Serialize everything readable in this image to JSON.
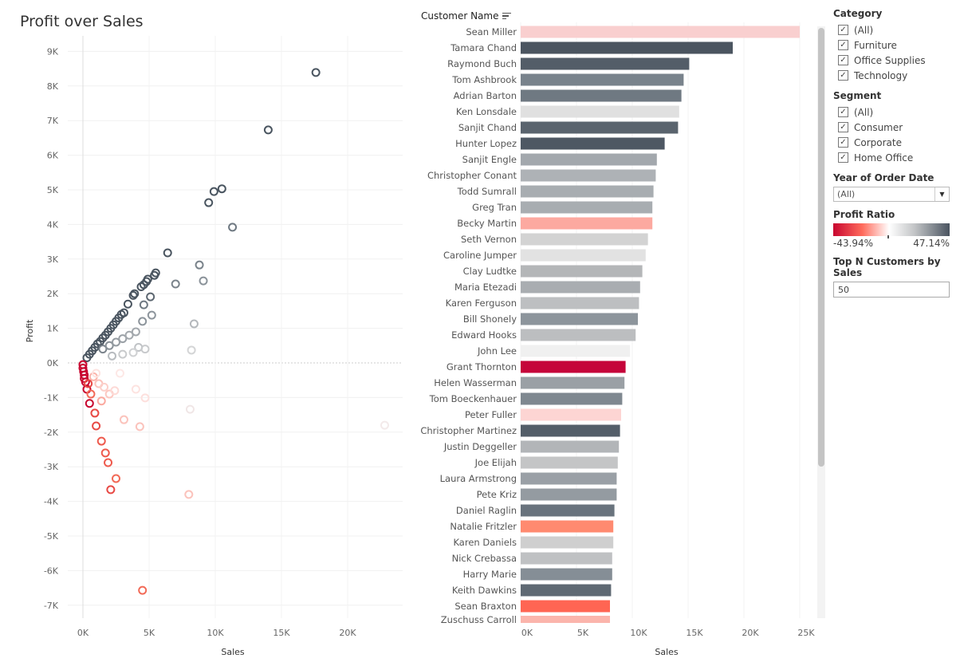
{
  "scatter": {
    "title": "Profit over Sales",
    "chart_data": {
      "type": "scatter",
      "xlabel": "Sales",
      "ylabel": "Profit",
      "xlim": [
        -1.2,
        24
      ],
      "ylim": [
        -7.4,
        9.3
      ],
      "xticks": [
        "0K",
        "5K",
        "10K",
        "15K",
        "20K"
      ],
      "xtick_values": [
        0,
        5,
        10,
        15,
        20
      ],
      "yticks": [
        "9K",
        "8K",
        "7K",
        "6K",
        "5K",
        "4K",
        "3K",
        "2K",
        "1K",
        "0K",
        "-1K",
        "-2K",
        "-3K",
        "-4K",
        "-5K",
        "-6K",
        "-7K"
      ],
      "ytick_values": [
        9,
        8,
        7,
        6,
        5,
        4,
        3,
        2,
        1,
        0,
        -1,
        -2,
        -3,
        -4,
        -5,
        -6,
        -7
      ],
      "units": "thousands",
      "grid": true,
      "points": [
        {
          "x": 0.3,
          "y": 0.15,
          "c": "#4a5560"
        },
        {
          "x": 0.5,
          "y": 0.25,
          "c": "#4a5560"
        },
        {
          "x": 0.7,
          "y": 0.35,
          "c": "#4a5560"
        },
        {
          "x": 0.9,
          "y": 0.45,
          "c": "#4a5560"
        },
        {
          "x": 1.1,
          "y": 0.55,
          "c": "#4a5560"
        },
        {
          "x": 1.3,
          "y": 0.62,
          "c": "#4a5560"
        },
        {
          "x": 1.5,
          "y": 0.72,
          "c": "#4a5560"
        },
        {
          "x": 1.7,
          "y": 0.8,
          "c": "#4a5560"
        },
        {
          "x": 1.9,
          "y": 0.9,
          "c": "#4a5560"
        },
        {
          "x": 2.1,
          "y": 1.0,
          "c": "#4a5560"
        },
        {
          "x": 2.3,
          "y": 1.1,
          "c": "#4a5560"
        },
        {
          "x": 2.5,
          "y": 1.2,
          "c": "#4a5560"
        },
        {
          "x": 2.7,
          "y": 1.3,
          "c": "#4a5560"
        },
        {
          "x": 2.9,
          "y": 1.4,
          "c": "#4a5560"
        },
        {
          "x": 3.1,
          "y": 1.45,
          "c": "#4a5560"
        },
        {
          "x": 3.4,
          "y": 1.7,
          "c": "#4a5560"
        },
        {
          "x": 3.8,
          "y": 1.95,
          "c": "#4a5560"
        },
        {
          "x": 3.9,
          "y": 2.0,
          "c": "#4a5560"
        },
        {
          "x": 4.4,
          "y": 2.2,
          "c": "#4a5560"
        },
        {
          "x": 4.8,
          "y": 2.35,
          "c": "#4a5560"
        },
        {
          "x": 4.9,
          "y": 2.42,
          "c": "#4a5560"
        },
        {
          "x": 5.4,
          "y": 2.53,
          "c": "#4a5560"
        },
        {
          "x": 5.5,
          "y": 2.6,
          "c": "#4a5560"
        },
        {
          "x": 6.4,
          "y": 3.18,
          "c": "#4a5560"
        },
        {
          "x": 1.5,
          "y": 0.4,
          "c": "#7a838b"
        },
        {
          "x": 2.0,
          "y": 0.5,
          "c": "#8a9299"
        },
        {
          "x": 2.5,
          "y": 0.6,
          "c": "#959ca2"
        },
        {
          "x": 3.0,
          "y": 0.7,
          "c": "#9aa0a6"
        },
        {
          "x": 3.5,
          "y": 0.8,
          "c": "#a3a8ad"
        },
        {
          "x": 4.0,
          "y": 0.9,
          "c": "#a3a8ad"
        },
        {
          "x": 4.5,
          "y": 1.2,
          "c": "#8d959c"
        },
        {
          "x": 4.6,
          "y": 1.68,
          "c": "#6f7982"
        },
        {
          "x": 5.2,
          "y": 1.38,
          "c": "#8d959c"
        },
        {
          "x": 4.2,
          "y": 0.45,
          "c": "#c0c3c6"
        },
        {
          "x": 4.7,
          "y": 0.4,
          "c": "#c8cacc"
        },
        {
          "x": 3.8,
          "y": 0.3,
          "c": "#cfd1d3"
        },
        {
          "x": 3.0,
          "y": 0.25,
          "c": "#c8cacc"
        },
        {
          "x": 2.2,
          "y": 0.2,
          "c": "#b8bcc0"
        },
        {
          "x": 5.1,
          "y": 1.91,
          "c": "#5c6670"
        },
        {
          "x": 4.6,
          "y": 2.26,
          "c": "#4a5560"
        },
        {
          "x": 7.0,
          "y": 2.28,
          "c": "#7a838b"
        },
        {
          "x": 8.8,
          "y": 2.83,
          "c": "#7a838b"
        },
        {
          "x": 9.1,
          "y": 2.37,
          "c": "#8a9299"
        },
        {
          "x": 8.4,
          "y": 1.13,
          "c": "#b4b8bc"
        },
        {
          "x": 8.2,
          "y": 0.37,
          "c": "#d4d5d6"
        },
        {
          "x": 9.5,
          "y": 4.63,
          "c": "#4a5560"
        },
        {
          "x": 9.9,
          "y": 4.95,
          "c": "#4a5560"
        },
        {
          "x": 10.5,
          "y": 5.03,
          "c": "#4a5560"
        },
        {
          "x": 11.3,
          "y": 3.92,
          "c": "#6f7982"
        },
        {
          "x": 14.0,
          "y": 6.73,
          "c": "#4a5560"
        },
        {
          "x": 17.6,
          "y": 8.39,
          "c": "#4a5560"
        },
        {
          "x": 0.0,
          "y": -0.05,
          "c": "#c8062f"
        },
        {
          "x": 0.0,
          "y": -0.15,
          "c": "#c8062f"
        },
        {
          "x": 0.05,
          "y": -0.25,
          "c": "#c8062f"
        },
        {
          "x": 0.1,
          "y": -0.35,
          "c": "#c8062f"
        },
        {
          "x": 0.1,
          "y": -0.45,
          "c": "#c8062f"
        },
        {
          "x": 0.2,
          "y": -0.55,
          "c": "#c8062f"
        },
        {
          "x": 0.3,
          "y": -0.76,
          "c": "#c8062f"
        },
        {
          "x": 0.5,
          "y": -1.17,
          "c": "#c8062f"
        },
        {
          "x": 0.9,
          "y": -1.45,
          "c": "#e84a45"
        },
        {
          "x": 1.0,
          "y": -1.82,
          "c": "#e84a45"
        },
        {
          "x": 1.4,
          "y": -2.26,
          "c": "#ee5a4d"
        },
        {
          "x": 1.7,
          "y": -2.6,
          "c": "#ee5a4d"
        },
        {
          "x": 1.9,
          "y": -2.88,
          "c": "#ee5a4d"
        },
        {
          "x": 2.5,
          "y": -3.34,
          "c": "#f26a57"
        },
        {
          "x": 2.1,
          "y": -3.66,
          "c": "#e84a45"
        },
        {
          "x": 4.5,
          "y": -6.57,
          "c": "#f26a57"
        },
        {
          "x": 0.8,
          "y": -0.4,
          "c": "#fbb5ac"
        },
        {
          "x": 1.2,
          "y": -0.6,
          "c": "#fbc3bc"
        },
        {
          "x": 1.6,
          "y": -0.7,
          "c": "#fcd0ca"
        },
        {
          "x": 2.0,
          "y": -0.9,
          "c": "#fcc8c1"
        },
        {
          "x": 1.4,
          "y": -1.1,
          "c": "#fba99f"
        },
        {
          "x": 2.4,
          "y": -0.8,
          "c": "#fddad6"
        },
        {
          "x": 3.1,
          "y": -1.64,
          "c": "#fbc3bc"
        },
        {
          "x": 4.3,
          "y": -1.84,
          "c": "#fbc3bc"
        },
        {
          "x": 4.7,
          "y": -1.01,
          "c": "#fde0dd"
        },
        {
          "x": 4.0,
          "y": -0.76,
          "c": "#fde3e0"
        },
        {
          "x": 2.8,
          "y": -0.3,
          "c": "#fde8e6"
        },
        {
          "x": 8.1,
          "y": -1.34,
          "c": "#f0e6e6"
        },
        {
          "x": 8.0,
          "y": -3.8,
          "c": "#fbc3bc"
        },
        {
          "x": 22.8,
          "y": -1.8,
          "c": "#f3eaea"
        },
        {
          "x": 0.6,
          "y": -0.9,
          "c": "#f26a57"
        },
        {
          "x": 0.4,
          "y": -0.6,
          "c": "#e84a45"
        },
        {
          "x": 1.0,
          "y": -0.3,
          "c": "#fde3e0"
        }
      ]
    }
  },
  "bars": {
    "header": "Customer Name",
    "chart_data": {
      "type": "bar",
      "orientation": "horizontal",
      "xlabel": "Sales",
      "xlim": [
        0,
        25
      ],
      "units": "thousands",
      "xticks": [
        "0K",
        "5K",
        "10K",
        "15K",
        "20K",
        "25K"
      ],
      "xtick_values": [
        0,
        5,
        10,
        15,
        20,
        25
      ],
      "categories": [
        "Sean Miller",
        "Tamara Chand",
        "Raymond Buch",
        "Tom Ashbrook",
        "Adrian Barton",
        "Ken Lonsdale",
        "Sanjit Chand",
        "Hunter Lopez",
        "Sanjit Engle",
        "Christopher Conant",
        "Todd Sumrall",
        "Greg Tran",
        "Becky Martin",
        "Seth Vernon",
        "Caroline Jumper",
        "Clay Ludtke",
        "Maria Etezadi",
        "Karen Ferguson",
        "Bill Shonely",
        "Edward Hooks",
        "John Lee",
        "Grant Thornton",
        "Helen Wasserman",
        "Tom Boeckenhauer",
        "Peter Fuller",
        "Christopher Martinez",
        "Justin Deggeller",
        "Joe Elijah",
        "Laura Armstrong",
        "Pete Kriz",
        "Daniel Raglin",
        "Natalie Fritzler",
        "Karen Daniels",
        "Nick Crebassa",
        "Harry Marie",
        "Keith Dawkins",
        "Sean Braxton",
        "Zuschuss Carroll"
      ],
      "values": [
        25.0,
        19.0,
        15.1,
        14.6,
        14.4,
        14.2,
        14.1,
        12.9,
        12.2,
        12.1,
        11.9,
        11.8,
        11.8,
        11.4,
        11.2,
        10.9,
        10.7,
        10.6,
        10.5,
        10.3,
        9.8,
        9.4,
        9.3,
        9.1,
        9.0,
        8.9,
        8.8,
        8.7,
        8.6,
        8.6,
        8.4,
        8.3,
        8.3,
        8.2,
        8.2,
        8.1,
        8.0,
        8.0
      ],
      "colors": [
        "#f9cfcf",
        "#4b5560",
        "#535d68",
        "#79838c",
        "#6f7982",
        "#e0e0e0",
        "#5a646e",
        "#4e5863",
        "#a3a8ad",
        "#aeb2b6",
        "#a8adb1",
        "#a8adb1",
        "#fca9a0",
        "#d3d3d3",
        "#e2e2e2",
        "#b4b6b8",
        "#a9adb1",
        "#bdbfc1",
        "#8d959c",
        "#bcbec0",
        "#f0f0f0",
        "#c5053a",
        "#9aa0a5",
        "#7f8890",
        "#fdd5d3",
        "#545e69",
        "#b2b5b8",
        "#c4c5c6",
        "#9aa0a6",
        "#949ba1",
        "#69737d",
        "#ff8a70",
        "#cfcfcf",
        "#bfc1c3",
        "#858e96",
        "#5f6973",
        "#ff6553",
        "#fbb5ac"
      ]
    }
  },
  "filters": {
    "category": {
      "title": "Category",
      "items": [
        {
          "label": "(All)",
          "checked": true
        },
        {
          "label": "Furniture",
          "checked": true
        },
        {
          "label": "Office Supplies",
          "checked": true
        },
        {
          "label": "Technology",
          "checked": true
        }
      ]
    },
    "segment": {
      "title": "Segment",
      "items": [
        {
          "label": "(All)",
          "checked": true
        },
        {
          "label": "Consumer",
          "checked": true
        },
        {
          "label": "Corporate",
          "checked": true
        },
        {
          "label": "Home Office",
          "checked": true
        }
      ]
    },
    "year": {
      "title": "Year of Order Date",
      "value": "(All)"
    },
    "profit_ratio": {
      "title": "Profit Ratio",
      "min": "-43.94%",
      "max": "47.14%",
      "color_low": "#c8062f",
      "color_high": "#4a5460"
    },
    "topn": {
      "title": "Top N Customers by Sales",
      "value": "50"
    }
  }
}
